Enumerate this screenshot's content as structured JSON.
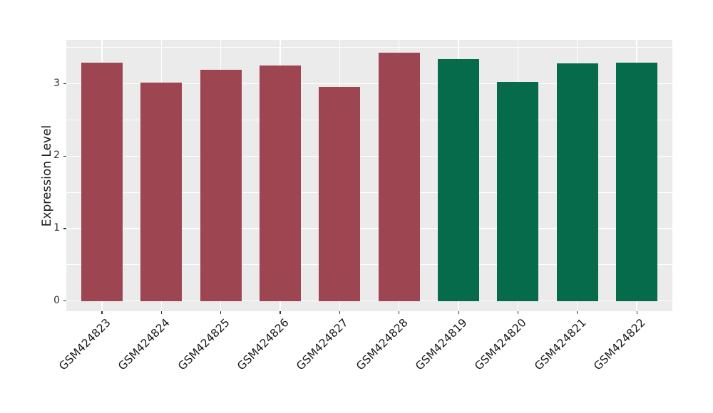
{
  "chart_data": {
    "type": "bar",
    "title": "",
    "xlabel": "",
    "ylabel": "Expression Level",
    "categories": [
      "GSM424823",
      "GSM424824",
      "GSM424825",
      "GSM424826",
      "GSM424827",
      "GSM424828",
      "GSM424819",
      "GSM424820",
      "GSM424821",
      "GSM424822"
    ],
    "values": [
      3.29,
      3.02,
      3.19,
      3.25,
      2.96,
      3.43,
      3.34,
      3.03,
      3.28,
      3.29
    ],
    "bar_colors": [
      "#9E4552",
      "#9E4552",
      "#9E4552",
      "#9E4552",
      "#9E4552",
      "#9E4552",
      "#056B4B",
      "#056B4B",
      "#056B4B",
      "#056B4B"
    ],
    "yticks": [
      0,
      1,
      2,
      3
    ],
    "ylim": [
      -0.15,
      3.6
    ],
    "x_tick_rotation": 45,
    "legend": "none",
    "grid": "major-and-minor",
    "panel_background": "#EBEBEB",
    "grid_color": "#FFFFFF",
    "axis_text_color": "#333333",
    "axis_title_color": "#1a1a1a"
  }
}
